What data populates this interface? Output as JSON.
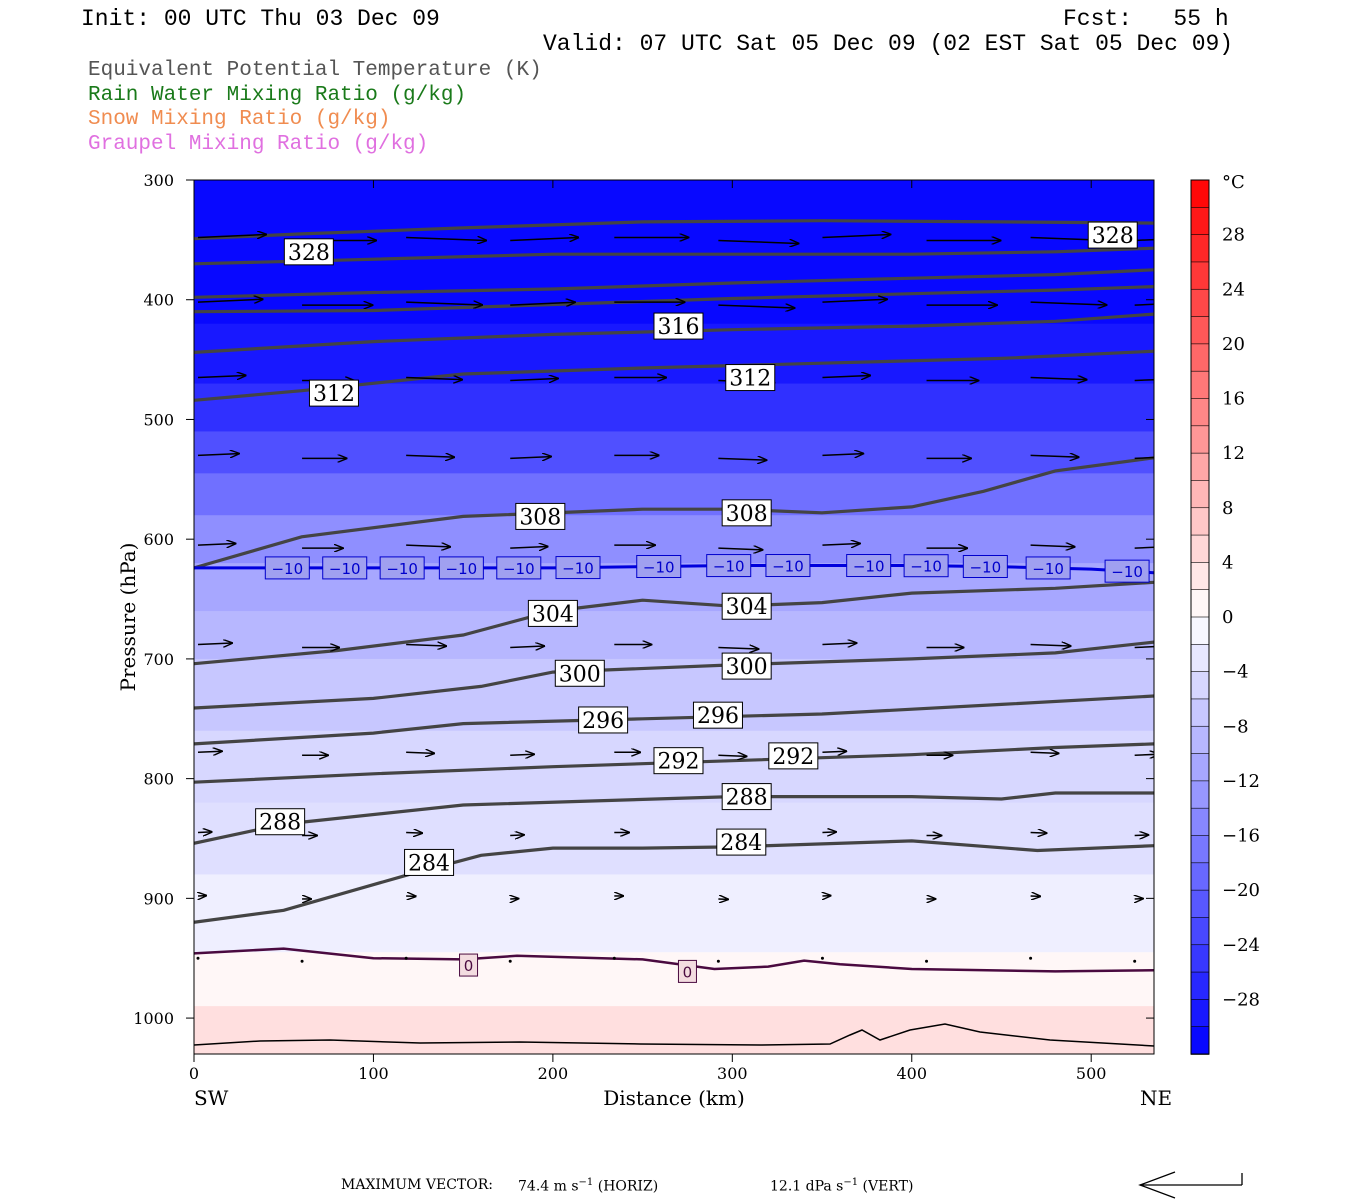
{
  "header": {
    "init": "Init: 00 UTC Thu 03 Dec 09",
    "fcst": "Fcst:   55 h",
    "valid": "Valid: 07 UTC Sat 05 Dec 09 (02 EST Sat 05 Dec 09)"
  },
  "legend": {
    "items": [
      {
        "label": "Equivalent Potential Temperature (K)",
        "color": "#555555"
      },
      {
        "label": "Rain Water Mixing Ratio (g/kg)",
        "color": "#1a7a1a"
      },
      {
        "label": "Snow Mixing Ratio (g/kg)",
        "color": "#f08c50"
      },
      {
        "label": "Graupel Mixing Ratio (g/kg)",
        "color": "#e070e0"
      }
    ]
  },
  "chart_data": {
    "type": "cross-section",
    "xlabel": "Distance (km)",
    "ylabel": "Pressure (hPa)",
    "xlim": [
      0,
      535
    ],
    "ylim": [
      1030,
      300
    ],
    "x_ticks": [
      0,
      100,
      200,
      300,
      400,
      500
    ],
    "y_ticks": [
      300,
      400,
      500,
      600,
      700,
      800,
      900,
      1000
    ],
    "x_end_labels": {
      "left": "SW",
      "right": "NE"
    },
    "colorbar": {
      "unit": "°C",
      "tick_labels": [
        "28",
        "24",
        "20",
        "16",
        "12",
        "8",
        "4",
        "0",
        "−4",
        "−8",
        "−12",
        "−16",
        "−20",
        "−24",
        "−28"
      ],
      "tick_values": [
        28,
        24,
        20,
        16,
        12,
        8,
        4,
        0,
        -4,
        -8,
        -12,
        -16,
        -20,
        -24,
        -28
      ],
      "range": [
        -32,
        32
      ]
    },
    "theta_e_contours": [
      {
        "label": "328",
        "points": [
          [
            0,
            349
          ],
          [
            60,
            345
          ],
          [
            150,
            340
          ],
          [
            250,
            335
          ],
          [
            350,
            334
          ],
          [
            450,
            335
          ],
          [
            535,
            336
          ]
        ]
      },
      {
        "label": "",
        "points": [
          [
            0,
            370
          ],
          [
            80,
            367
          ],
          [
            200,
            362
          ],
          [
            300,
            362
          ],
          [
            400,
            362
          ],
          [
            480,
            360
          ],
          [
            535,
            357
          ]
        ]
      },
      {
        "label": "",
        "points": [
          [
            0,
            398
          ],
          [
            100,
            394
          ],
          [
            200,
            391
          ],
          [
            300,
            386
          ],
          [
            400,
            382
          ],
          [
            480,
            379
          ],
          [
            535,
            375
          ]
        ]
      },
      {
        "label": "316",
        "points": [
          [
            0,
            410
          ],
          [
            100,
            409
          ],
          [
            200,
            404
          ],
          [
            300,
            399
          ],
          [
            400,
            395
          ],
          [
            480,
            392
          ],
          [
            535,
            389
          ]
        ]
      },
      {
        "label": "",
        "points": [
          [
            0,
            444
          ],
          [
            100,
            435
          ],
          [
            200,
            429
          ],
          [
            300,
            425
          ],
          [
            400,
            422
          ],
          [
            480,
            418
          ],
          [
            535,
            412
          ]
        ]
      },
      {
        "label": "312",
        "points": [
          [
            0,
            484
          ],
          [
            60,
            476
          ],
          [
            150,
            462
          ],
          [
            250,
            457
          ],
          [
            350,
            453
          ],
          [
            450,
            449
          ],
          [
            535,
            443
          ]
        ]
      },
      {
        "label": "308",
        "points": [
          [
            0,
            624
          ],
          [
            60,
            598
          ],
          [
            150,
            581
          ],
          [
            250,
            575
          ],
          [
            300,
            575
          ],
          [
            350,
            578
          ],
          [
            400,
            573
          ],
          [
            440,
            560
          ],
          [
            480,
            543
          ],
          [
            535,
            532
          ]
        ]
      },
      {
        "label": "304",
        "points": [
          [
            0,
            704
          ],
          [
            80,
            693
          ],
          [
            150,
            680
          ],
          [
            200,
            660
          ],
          [
            250,
            651
          ],
          [
            300,
            656
          ],
          [
            350,
            653
          ],
          [
            400,
            645
          ],
          [
            480,
            641
          ],
          [
            535,
            636
          ]
        ]
      },
      {
        "label": "300",
        "points": [
          [
            0,
            741
          ],
          [
            100,
            733
          ],
          [
            160,
            723
          ],
          [
            200,
            711
          ],
          [
            300,
            705
          ],
          [
            400,
            700
          ],
          [
            480,
            695
          ],
          [
            535,
            686
          ]
        ]
      },
      {
        "label": "296",
        "points": [
          [
            0,
            771
          ],
          [
            100,
            762
          ],
          [
            150,
            754
          ],
          [
            250,
            750
          ],
          [
            350,
            746
          ],
          [
            450,
            738
          ],
          [
            535,
            731
          ]
        ]
      },
      {
        "label": "292",
        "points": [
          [
            0,
            803
          ],
          [
            100,
            796
          ],
          [
            200,
            790
          ],
          [
            300,
            785
          ],
          [
            400,
            780
          ],
          [
            480,
            774
          ],
          [
            535,
            771
          ]
        ]
      },
      {
        "label": "288",
        "points": [
          [
            0,
            854
          ],
          [
            50,
            838
          ],
          [
            150,
            822
          ],
          [
            300,
            815
          ],
          [
            400,
            815
          ],
          [
            450,
            817
          ],
          [
            480,
            812
          ],
          [
            535,
            812
          ]
        ]
      },
      {
        "label": "284",
        "points": [
          [
            0,
            920
          ],
          [
            50,
            910
          ],
          [
            120,
            880
          ],
          [
            160,
            864
          ],
          [
            200,
            858
          ],
          [
            250,
            858
          ],
          [
            300,
            857
          ],
          [
            400,
            852
          ],
          [
            470,
            860
          ],
          [
            535,
            856
          ]
        ]
      }
    ],
    "isotherms": [
      {
        "label": "−10",
        "value": -10,
        "points": [
          [
            0,
            624
          ],
          [
            100,
            624
          ],
          [
            200,
            624
          ],
          [
            300,
            622
          ],
          [
            400,
            622
          ],
          [
            450,
            623
          ],
          [
            500,
            625
          ],
          [
            535,
            628
          ]
        ]
      },
      {
        "label": "0",
        "value": 0,
        "points": [
          [
            0,
            946
          ],
          [
            50,
            942
          ],
          [
            100,
            950
          ],
          [
            150,
            951
          ],
          [
            180,
            948
          ],
          [
            250,
            951
          ],
          [
            290,
            959
          ],
          [
            320,
            957
          ],
          [
            340,
            952
          ],
          [
            360,
            955
          ],
          [
            400,
            959
          ],
          [
            480,
            961
          ],
          [
            535,
            960
          ]
        ]
      }
    ],
    "wind_vectors_rows": [
      {
        "p": 348,
        "length": 1.0
      },
      {
        "p": 402,
        "length": 0.95
      },
      {
        "p": 465,
        "length": 0.7
      },
      {
        "p": 530,
        "length": 0.6
      },
      {
        "p": 605,
        "length": 0.55
      },
      {
        "p": 688,
        "length": 0.5
      },
      {
        "p": 778,
        "length": 0.35
      },
      {
        "p": 845,
        "length": 0.2
      },
      {
        "p": 898,
        "length": 0.12
      },
      {
        "p": 950,
        "length": 0.06
      }
    ],
    "wind_x_positions": [
      0,
      58,
      116,
      174,
      232,
      290,
      348,
      406,
      464,
      522
    ]
  },
  "footer": {
    "prefix": "MAXIMUM VECTOR:",
    "horiz": "74.4 m s",
    "horiz_unit": " (HORIZ)",
    "vert": "12.1 dPa s",
    "vert_unit": " (VERT)",
    "exp": "−1"
  }
}
